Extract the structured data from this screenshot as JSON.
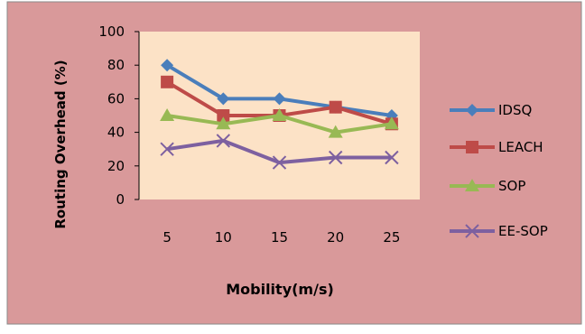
{
  "chart_data": {
    "type": "line",
    "xlabel": "Mobility(m/s)",
    "ylabel": "Routing Overhead (%)",
    "categories": [
      "5",
      "10",
      "15",
      "20",
      "25"
    ],
    "ylim": [
      0,
      100
    ],
    "yticks": [
      "0",
      "20",
      "40",
      "60",
      "80",
      "100"
    ],
    "grid": false,
    "legend_position": "right",
    "colors": {
      "chart_area_background": "#d9999a",
      "plot_area_background": "#fce2c6",
      "frame_border": "#8a8a8a"
    },
    "series": [
      {
        "name": "IDSQ",
        "values": [
          80,
          60,
          60,
          55,
          50
        ],
        "color": "#4a7ebb",
        "marker": "diamond"
      },
      {
        "name": "LEACH",
        "values": [
          70,
          50,
          50,
          55,
          45
        ],
        "color": "#be4b48",
        "marker": "square"
      },
      {
        "name": "SOP",
        "values": [
          50,
          45,
          50,
          40,
          45
        ],
        "color": "#98b954",
        "marker": "triangle"
      },
      {
        "name": "EE-SOP",
        "values": [
          30,
          35,
          22,
          25,
          25
        ],
        "color": "#7d60a0",
        "marker": "x"
      }
    ]
  }
}
